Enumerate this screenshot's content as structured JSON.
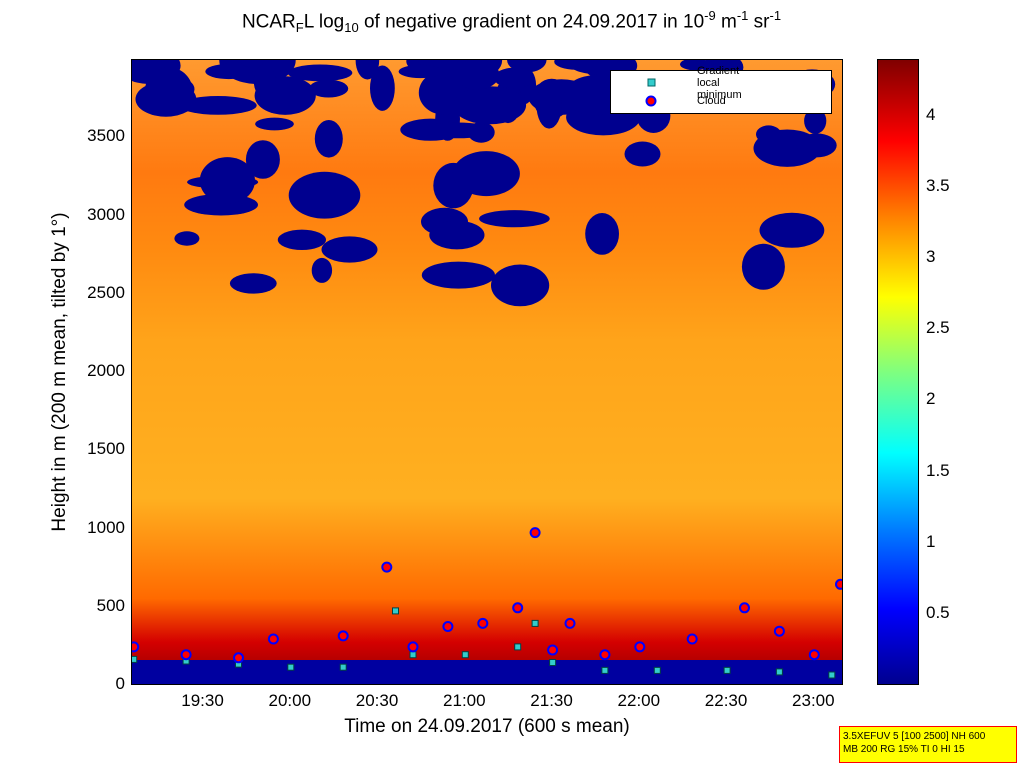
{
  "chart_data": {
    "type": "heatmap",
    "title": {
      "prefix": "NCAR",
      "sub1": "F",
      "mid1": "L log",
      "sub2": "10",
      "mid2": " of negative gradient on 24.09.2017 in 10",
      "sup1": "-9",
      "mid3": " m",
      "sup2": "-1",
      "mid4": " sr",
      "sup3": "-1"
    },
    "xlabel": "Time on 24.09.2017 (600 s mean)",
    "ylabel": "Height in m (200 m mean, tilted by 1°)",
    "x_tick_labels": [
      "19:30",
      "20:00",
      "20:30",
      "21:00",
      "21:30",
      "22:00",
      "22:30",
      "23:00"
    ],
    "x_tick_hours": [
      19.5,
      20.0,
      20.5,
      21.0,
      21.5,
      22.0,
      22.5,
      23.0
    ],
    "xlim_hours": [
      19.09,
      23.17
    ],
    "y_tick_labels": [
      "0",
      "500",
      "1000",
      "1500",
      "2000",
      "2500",
      "3000",
      "3500"
    ],
    "y_ticks": [
      0,
      500,
      1000,
      1500,
      2000,
      2500,
      3000,
      3500
    ],
    "ylim": [
      0,
      4000
    ],
    "colorbar": {
      "tick_labels": [
        "0.5",
        "1",
        "1.5",
        "2",
        "2.5",
        "3",
        "3.5",
        "4"
      ],
      "ticks": [
        0.5,
        1,
        1.5,
        2,
        2.5,
        3,
        3.5,
        4
      ],
      "range": [
        0,
        4.4
      ],
      "colormap": "jet"
    },
    "legend": {
      "placement": "top-right",
      "entries": [
        {
          "label": "Gradient local minimum",
          "marker": "square",
          "color": "#33cccc"
        },
        {
          "label": "Cloud",
          "marker": "circle",
          "color": "#ff0000",
          "edge": "#0000ff"
        }
      ]
    },
    "gradient_local_minimum": {
      "x": [
        19.1,
        19.4,
        19.7,
        20.0,
        20.3,
        20.6,
        20.7,
        21.0,
        21.3,
        21.4,
        21.5,
        21.8,
        22.1,
        22.5,
        22.8,
        23.1
      ],
      "y": [
        170,
        160,
        140,
        120,
        120,
        480,
        200,
        200,
        250,
        400,
        150,
        100,
        100,
        100,
        90,
        70
      ]
    },
    "cloud_base": {
      "x": [
        19.1,
        19.4,
        19.7,
        19.9,
        20.3,
        20.55,
        20.7,
        20.9,
        21.1,
        21.3,
        21.4,
        21.5,
        21.6,
        21.8,
        22.0,
        22.3,
        22.6,
        22.8,
        23.0,
        23.15
      ],
      "y": [
        250,
        200,
        180,
        300,
        320,
        760,
        250,
        380,
        400,
        500,
        980,
        230,
        400,
        200,
        250,
        300,
        500,
        350,
        200,
        650
      ]
    },
    "colors": {
      "background_field": "#ff9a1a",
      "colorbar_low": "#00008f",
      "colorbar_high": "#800000"
    }
  },
  "info_box": {
    "line1": "3.5XEFUV 5 [100 2500] NH 600",
    "line2": "MB 200 RG 15% TI 0 HI 15"
  }
}
